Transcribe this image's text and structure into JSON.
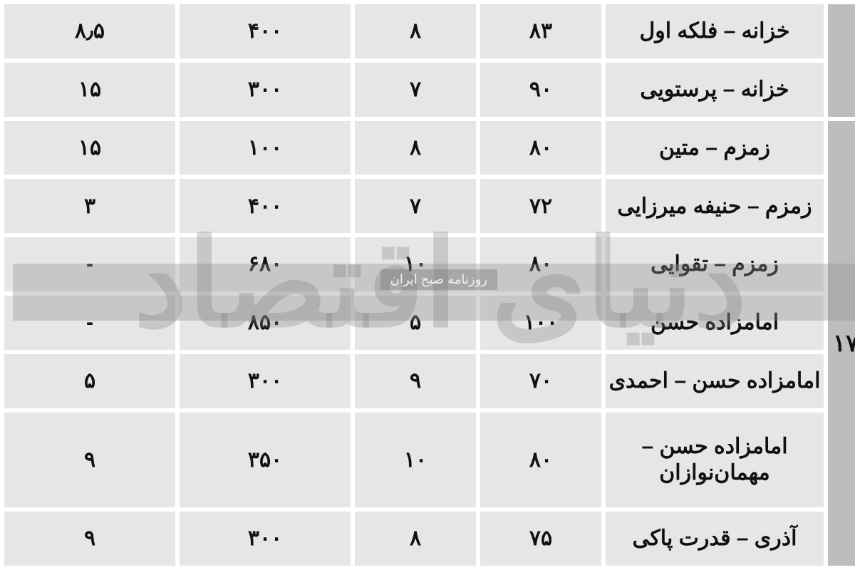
{
  "watermark": {
    "main_text": "دنیای اقتصاد",
    "sub_text": "روزنامه صبح ایران"
  },
  "colors": {
    "cell_bg": "#e6e6e6",
    "side_bg": "#bdbdbd",
    "page_bg": "#ffffff",
    "text": "#111111",
    "wm_text": "rgba(120,120,120,0.28)",
    "wm_band": "rgba(140,140,140,0.35)"
  },
  "side_label_group2": "۱۷",
  "rows": [
    {
      "name": "خزانه – فلکه اول",
      "c1": "۸۳",
      "c2": "۸",
      "c3": "۴۰۰",
      "c4": "۸٫۵"
    },
    {
      "name": "خزانه – پرستویی",
      "c1": "۹۰",
      "c2": "۷",
      "c3": "۳۰۰",
      "c4": "۱۵"
    },
    {
      "name": "زمزم – متین",
      "c1": "۸۰",
      "c2": "۸",
      "c3": "۱۰۰",
      "c4": "۱۵"
    },
    {
      "name": "زمزم – حنیفه میرزایی",
      "c1": "۷۲",
      "c2": "۷",
      "c3": "۴۰۰",
      "c4": "۳"
    },
    {
      "name": "زمزم – تقوایی",
      "c1": "۸۰",
      "c2": "۱۰",
      "c3": "۶۸۰",
      "c4": "-"
    },
    {
      "name": "امامزاده حسن",
      "c1": "۱۰۰",
      "c2": "۵",
      "c3": "۸۵۰",
      "c4": "-"
    },
    {
      "name": "امامزاده حسن – احمدی",
      "c1": "۷۰",
      "c2": "۹",
      "c3": "۳۰۰",
      "c4": "۵"
    },
    {
      "name": "امامزاده حسن – مهمان‌نوازان",
      "c1": "۸۰",
      "c2": "۱۰",
      "c3": "۳۵۰",
      "c4": "۹"
    },
    {
      "name": "آذری – قدرت پاکی",
      "c1": "۷۵",
      "c2": "۸",
      "c3": "۳۰۰",
      "c4": "۹"
    }
  ]
}
